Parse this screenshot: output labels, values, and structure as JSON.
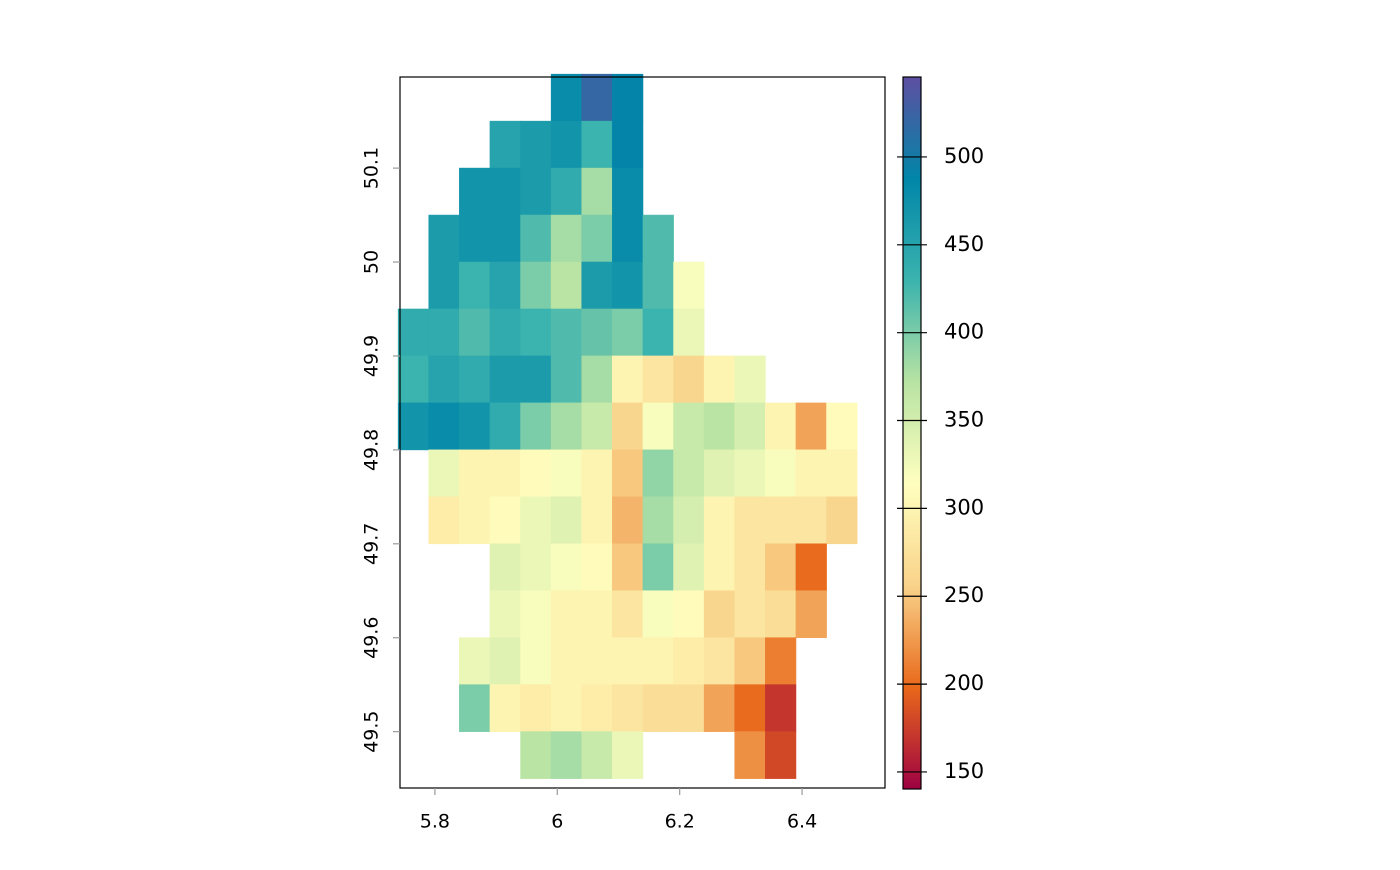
{
  "chart_data": {
    "type": "raster",
    "xlim": [
      5.743,
      6.5355
    ],
    "ylim": [
      49.44,
      50.197
    ],
    "xticks": [
      5.8,
      6,
      6.2,
      6.4
    ],
    "yticks": [
      49.5,
      49.6,
      49.7,
      49.8,
      49.9,
      50,
      50.1
    ],
    "zlim": [
      140.3,
      545.5
    ],
    "zticks": [
      150,
      200,
      250,
      300,
      350,
      400,
      450,
      500
    ],
    "colors": [
      "#9E0142",
      "#E8681A",
      "#F9D38A",
      "#FFFFBF",
      "#B8E3A3",
      "#3BB3AE",
      "#0086A8",
      "#5E4FA2"
    ],
    "x": [
      5.765,
      5.815,
      5.865,
      5.915,
      5.965,
      6.015,
      6.065,
      6.115,
      6.165,
      6.215,
      6.265,
      6.315,
      6.365,
      6.415,
      6.465,
      6.515
    ],
    "y": [
      50.175,
      50.125,
      50.075,
      50.025,
      49.975,
      49.925,
      49.875,
      49.825,
      49.775,
      49.725,
      49.675,
      49.625,
      49.575,
      49.525,
      49.475
    ],
    "values": [
      [
        null,
        null,
        null,
        null,
        null,
        480,
        520,
        490,
        null,
        null,
        null,
        null,
        null,
        null,
        null,
        null
      ],
      [
        null,
        null,
        null,
        450,
        460,
        470,
        430,
        490,
        null,
        null,
        null,
        null,
        null,
        null,
        null,
        null
      ],
      [
        null,
        null,
        470,
        470,
        460,
        440,
        380,
        480,
        null,
        null,
        null,
        null,
        null,
        null,
        null,
        null
      ],
      [
        null,
        460,
        470,
        470,
        420,
        380,
        400,
        480,
        420,
        null,
        null,
        null,
        null,
        null,
        null,
        null
      ],
      [
        null,
        460,
        430,
        450,
        400,
        370,
        460,
        470,
        420,
        320,
        null,
        null,
        null,
        null,
        null,
        null
      ],
      [
        440,
        440,
        420,
        440,
        430,
        420,
        410,
        400,
        430,
        330,
        null,
        null,
        null,
        null,
        null,
        null
      ],
      [
        430,
        450,
        440,
        460,
        460,
        420,
        380,
        300,
        280,
        260,
        300,
        330,
        null,
        null,
        null,
        null
      ],
      [
        470,
        480,
        470,
        440,
        400,
        380,
        360,
        260,
        320,
        360,
        370,
        350,
        300,
        230,
        310,
        null
      ],
      [
        null,
        330,
        300,
        300,
        310,
        320,
        300,
        250,
        390,
        360,
        340,
        330,
        320,
        300,
        300,
        null
      ],
      [
        null,
        290,
        300,
        310,
        330,
        340,
        300,
        240,
        380,
        350,
        300,
        280,
        280,
        280,
        260,
        null
      ],
      [
        null,
        null,
        null,
        340,
        330,
        320,
        310,
        250,
        400,
        340,
        300,
        280,
        250,
        200,
        null,
        null
      ],
      [
        null,
        null,
        null,
        330,
        320,
        300,
        300,
        280,
        320,
        310,
        260,
        280,
        270,
        230,
        null,
        null
      ],
      [
        null,
        null,
        330,
        340,
        320,
        300,
        300,
        300,
        300,
        290,
        280,
        250,
        210,
        null,
        null,
        null
      ],
      [
        null,
        null,
        400,
        300,
        290,
        300,
        290,
        280,
        270,
        270,
        230,
        200,
        170,
        null,
        null,
        null
      ],
      [
        null,
        null,
        null,
        null,
        370,
        380,
        360,
        330,
        null,
        null,
        null,
        220,
        180,
        null,
        null,
        null
      ]
    ]
  }
}
